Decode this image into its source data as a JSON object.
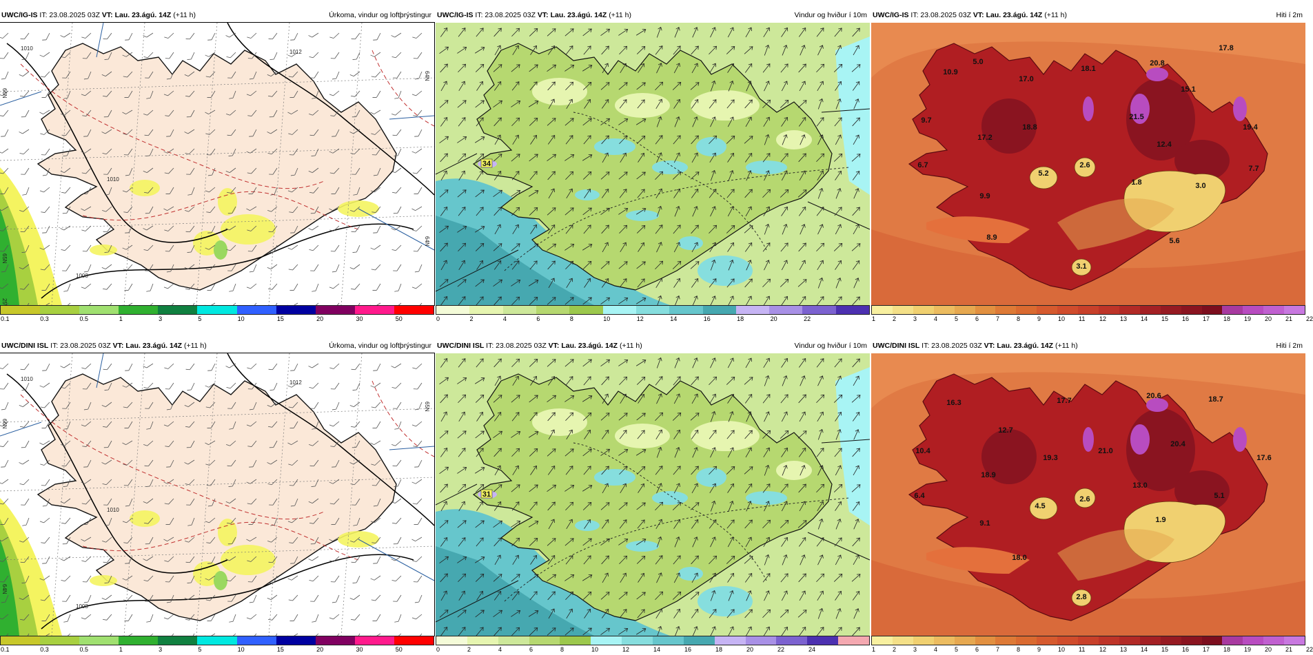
{
  "issue": {
    "it": "IT: 23.08.2025 03Z",
    "vt_prefix": "VT:",
    "vt": "Lau. 23.ágú. 14Z",
    "lead": "(+11 h)"
  },
  "rows": [
    {
      "model": "UWC/IG-IS",
      "panels": [
        {
          "title": "Úrkoma, vindur og loftþrýstingur",
          "map_type": "precip",
          "lat_labels": [
            "66N",
            "64N",
            "65N",
            "64N",
            "25W"
          ],
          "isobars": [
            "1010",
            "1012",
            "1010",
            "1008"
          ],
          "ticks": [
            "0.1",
            "0.3",
            "0.5",
            "1",
            "3",
            "5",
            "10",
            "15",
            "20",
            "30",
            "50"
          ],
          "colors": [
            "#c8c82a",
            "#a8d040",
            "#a0e070",
            "#30b030",
            "#108040",
            "#00e8e0",
            "#3060ff",
            "#0000a0",
            "#800060",
            "#ff1a8c",
            "#ff0000"
          ]
        },
        {
          "title": "Vindur og hviður í 10m",
          "map_type": "wind",
          "max_label": "34",
          "ticks": [
            "0",
            "2",
            "4",
            "6",
            "8",
            "10",
            "12",
            "14",
            "16",
            "18",
            "20",
            "22"
          ],
          "colors": [
            "#f4fbd8",
            "#e6f5b0",
            "#cde89a",
            "#b6d870",
            "#9cc84c",
            "#a8f4f4",
            "#86dede",
            "#66c6cc",
            "#46a8b0",
            "#c6b4f4",
            "#a890e6",
            "#7c62d0",
            "#4c30b0"
          ]
        },
        {
          "title": "Hiti í 2m",
          "map_type": "temp",
          "values": [
            "5.0",
            "10.9",
            "9.7",
            "6.7",
            "17.0",
            "18.1",
            "20.8",
            "17.8",
            "15.1",
            "21.5",
            "18.8",
            "17.2",
            "12.4",
            "19.4",
            "5.2",
            "2.6",
            "1.8",
            "3.0",
            "7.7",
            "9.9",
            "8.9",
            "5.6",
            "3.1"
          ],
          "ticks": [
            "1",
            "2",
            "3",
            "4",
            "5",
            "6",
            "7",
            "8",
            "9",
            "10",
            "11",
            "12",
            "13",
            "14",
            "15",
            "16",
            "17",
            "18",
            "19",
            "20",
            "21",
            "22"
          ],
          "colors": [
            "#f8f0a0",
            "#f4e088",
            "#f0d070",
            "#ecbc60",
            "#e6a850",
            "#e29040",
            "#de7a36",
            "#da6a30",
            "#d65a2e",
            "#d04c2c",
            "#c8402a",
            "#be3428",
            "#b22a26",
            "#a42024",
            "#961a22",
            "#8a1420",
            "#7c0e1e",
            "#a83aa0",
            "#b84cc0",
            "#c060d0",
            "#c878e0"
          ]
        }
      ]
    },
    {
      "model": "UWC/DINI ISL",
      "panels": [
        {
          "title": "Úrkoma, vindur og loftþrýstingur",
          "map_type": "precip",
          "lat_labels": [
            "66N",
            "65N",
            "64N"
          ],
          "isobars": [
            "1010",
            "1012",
            "1010",
            "1008"
          ],
          "ticks": [
            "0.1",
            "0.3",
            "0.5",
            "1",
            "3",
            "5",
            "10",
            "15",
            "20",
            "30",
            "50"
          ],
          "colors": [
            "#c8c82a",
            "#a8d040",
            "#a0e070",
            "#30b030",
            "#108040",
            "#00e8e0",
            "#3060ff",
            "#0000a0",
            "#800060",
            "#ff1a8c",
            "#ff0000"
          ]
        },
        {
          "title": "Vindur og hviður í 10m",
          "map_type": "wind",
          "max_label": "31",
          "ticks": [
            "0",
            "2",
            "4",
            "6",
            "8",
            "10",
            "12",
            "14",
            "16",
            "18",
            "20",
            "22",
            "24"
          ],
          "colors": [
            "#f4fbd8",
            "#e6f5b0",
            "#cde89a",
            "#b6d870",
            "#9cc84c",
            "#a8f4f4",
            "#86dede",
            "#66c6cc",
            "#46a8b0",
            "#c6b4f4",
            "#a890e6",
            "#7c62d0",
            "#4c30b0",
            "#f4a8b0"
          ]
        },
        {
          "title": "Hiti í 2m",
          "map_type": "temp",
          "values": [
            "16.3",
            "12.7",
            "10.4",
            "17.7",
            "20.6",
            "18.7",
            "19.3",
            "21.0",
            "20.4",
            "17.6",
            "18.9",
            "6.4",
            "4.5",
            "2.6",
            "13.0",
            "5.1",
            "9.1",
            "1.9",
            "18.0",
            "2.8"
          ],
          "ticks": [
            "1",
            "2",
            "3",
            "4",
            "5",
            "6",
            "7",
            "8",
            "9",
            "10",
            "11",
            "12",
            "13",
            "14",
            "15",
            "16",
            "17",
            "18",
            "19",
            "20",
            "21",
            "22"
          ],
          "colors": [
            "#f8f0a0",
            "#f4e088",
            "#f0d070",
            "#ecbc60",
            "#e6a850",
            "#e29040",
            "#de7a36",
            "#da6a30",
            "#d65a2e",
            "#d04c2c",
            "#c8402a",
            "#be3428",
            "#b22a26",
            "#a42024",
            "#961a22",
            "#8a1420",
            "#7c0e1e",
            "#a83aa0",
            "#b84cc0",
            "#c060d0",
            "#c878e0"
          ]
        }
      ]
    }
  ]
}
